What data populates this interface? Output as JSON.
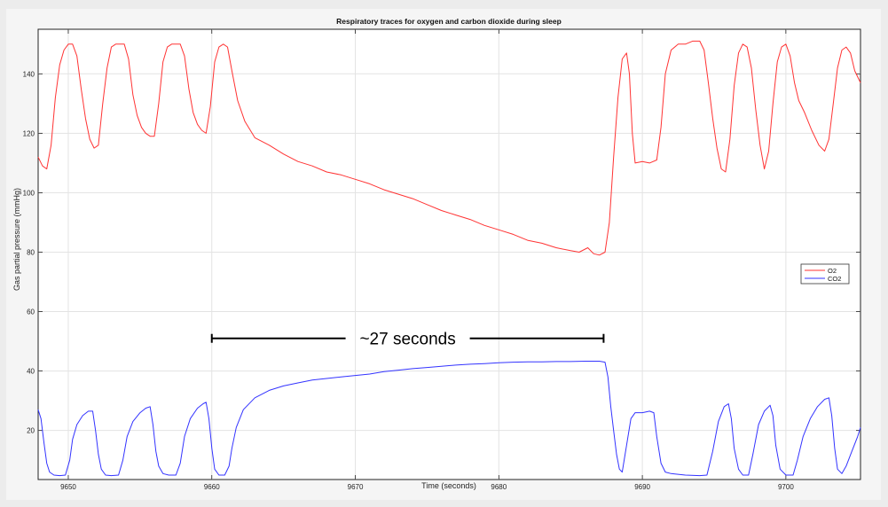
{
  "chart_data": {
    "type": "line",
    "title": "Respiratory traces for oxygen and carbon dioxide during sleep",
    "xlabel": "Time (seconds)",
    "ylabel": "Gas partial pressure (mmHg)",
    "xlim": [
      9647.9,
      9705.2
    ],
    "ylim": [
      3.5,
      155
    ],
    "x_ticks": [
      9650,
      9660,
      9670,
      9680,
      9690,
      9700
    ],
    "y_ticks": [
      20,
      40,
      60,
      80,
      100,
      120,
      140
    ],
    "grid": true,
    "legend": {
      "placement": "right",
      "entries": [
        "O2",
        "CO2"
      ]
    },
    "annotation": {
      "text": "~27 seconds",
      "x_start": 9660,
      "x_end": 9687.3,
      "y": 51
    },
    "series": [
      {
        "name": "O2",
        "color": "#ff3333",
        "points": [
          [
            9647.9,
            112
          ],
          [
            9648.2,
            109
          ],
          [
            9648.5,
            108
          ],
          [
            9648.8,
            116
          ],
          [
            9649.1,
            132
          ],
          [
            9649.4,
            143
          ],
          [
            9649.7,
            148
          ],
          [
            9650.0,
            150
          ],
          [
            9650.3,
            150
          ],
          [
            9650.6,
            146
          ],
          [
            9650.9,
            135
          ],
          [
            9651.2,
            125
          ],
          [
            9651.5,
            118
          ],
          [
            9651.8,
            115
          ],
          [
            9652.1,
            116
          ],
          [
            9652.4,
            130
          ],
          [
            9652.7,
            142
          ],
          [
            9653.0,
            149
          ],
          [
            9653.3,
            150
          ],
          [
            9653.6,
            150
          ],
          [
            9653.9,
            150
          ],
          [
            9654.2,
            145
          ],
          [
            9654.5,
            133
          ],
          [
            9654.8,
            126
          ],
          [
            9655.1,
            122
          ],
          [
            9655.4,
            120
          ],
          [
            9655.7,
            119
          ],
          [
            9656.0,
            119
          ],
          [
            9656.3,
            130
          ],
          [
            9656.6,
            144
          ],
          [
            9656.9,
            149
          ],
          [
            9657.2,
            150
          ],
          [
            9657.5,
            150
          ],
          [
            9657.8,
            150
          ],
          [
            9658.1,
            146
          ],
          [
            9658.4,
            135
          ],
          [
            9658.7,
            127
          ],
          [
            9659.0,
            123
          ],
          [
            9659.3,
            121
          ],
          [
            9659.6,
            120
          ],
          [
            9659.9,
            129
          ],
          [
            9660.2,
            144
          ],
          [
            9660.5,
            149
          ],
          [
            9660.8,
            150
          ],
          [
            9661.1,
            149
          ],
          [
            9661.4,
            141
          ],
          [
            9661.8,
            131
          ],
          [
            9662.3,
            124
          ],
          [
            9663.0,
            118.5
          ],
          [
            9664.0,
            116
          ],
          [
            9665.0,
            113
          ],
          [
            9666.0,
            110.5
          ],
          [
            9667.0,
            109
          ],
          [
            9668.0,
            107
          ],
          [
            9669.0,
            106
          ],
          [
            9670.0,
            104.5
          ],
          [
            9671.0,
            103
          ],
          [
            9672.0,
            101
          ],
          [
            9673.0,
            99.5
          ],
          [
            9674.0,
            98
          ],
          [
            9675.0,
            96
          ],
          [
            9676.0,
            94
          ],
          [
            9677.0,
            92.5
          ],
          [
            9678.0,
            91
          ],
          [
            9679.0,
            89
          ],
          [
            9680.0,
            87.5
          ],
          [
            9681.0,
            86
          ],
          [
            9682.0,
            84
          ],
          [
            9683.0,
            83
          ],
          [
            9684.0,
            81.5
          ],
          [
            9685.0,
            80.5
          ],
          [
            9685.6,
            80
          ],
          [
            9686.2,
            81.5
          ],
          [
            9686.6,
            79.5
          ],
          [
            9687.0,
            79
          ],
          [
            9687.4,
            80
          ],
          [
            9687.7,
            90
          ],
          [
            9688.0,
            112
          ],
          [
            9688.3,
            132
          ],
          [
            9688.6,
            145
          ],
          [
            9688.9,
            147
          ],
          [
            9689.1,
            140
          ],
          [
            9689.3,
            120
          ],
          [
            9689.5,
            110
          ],
          [
            9690.0,
            110.5
          ],
          [
            9690.5,
            110
          ],
          [
            9691.0,
            111
          ],
          [
            9691.3,
            122
          ],
          [
            9691.6,
            140
          ],
          [
            9692.0,
            148
          ],
          [
            9692.5,
            150
          ],
          [
            9693.0,
            150
          ],
          [
            9693.5,
            151
          ],
          [
            9694.0,
            151
          ],
          [
            9694.3,
            148
          ],
          [
            9694.6,
            137
          ],
          [
            9694.9,
            125
          ],
          [
            9695.2,
            115
          ],
          [
            9695.5,
            108
          ],
          [
            9695.8,
            107
          ],
          [
            9696.1,
            118
          ],
          [
            9696.4,
            136
          ],
          [
            9696.7,
            147
          ],
          [
            9697.0,
            150
          ],
          [
            9697.3,
            149
          ],
          [
            9697.6,
            142
          ],
          [
            9697.9,
            128
          ],
          [
            9698.2,
            116
          ],
          [
            9698.5,
            108
          ],
          [
            9698.8,
            114
          ],
          [
            9699.1,
            130
          ],
          [
            9699.4,
            144
          ],
          [
            9699.7,
            149
          ],
          [
            9700.0,
            150
          ],
          [
            9700.3,
            146
          ],
          [
            9700.6,
            137
          ],
          [
            9700.9,
            131
          ],
          [
            9701.3,
            127
          ],
          [
            9701.8,
            121
          ],
          [
            9702.3,
            116
          ],
          [
            9702.7,
            114
          ],
          [
            9703.0,
            118
          ],
          [
            9703.3,
            130
          ],
          [
            9703.6,
            142
          ],
          [
            9703.9,
            148
          ],
          [
            9704.2,
            149
          ],
          [
            9704.5,
            147
          ],
          [
            9704.8,
            141
          ],
          [
            9705.2,
            137
          ]
        ]
      },
      {
        "name": "CO2",
        "color": "#3333ff",
        "points": [
          [
            9647.9,
            27
          ],
          [
            9648.1,
            24
          ],
          [
            9648.3,
            16
          ],
          [
            9648.5,
            9
          ],
          [
            9648.7,
            6
          ],
          [
            9649.0,
            5
          ],
          [
            9649.4,
            4.8
          ],
          [
            9649.8,
            5
          ],
          [
            9650.1,
            10
          ],
          [
            9650.3,
            17
          ],
          [
            9650.6,
            22
          ],
          [
            9651.0,
            25
          ],
          [
            9651.4,
            26.5
          ],
          [
            9651.7,
            26.5
          ],
          [
            9651.9,
            20
          ],
          [
            9652.1,
            12
          ],
          [
            9652.3,
            7
          ],
          [
            9652.6,
            5
          ],
          [
            9653.0,
            4.8
          ],
          [
            9653.5,
            5
          ],
          [
            9653.8,
            10
          ],
          [
            9654.1,
            18
          ],
          [
            9654.5,
            23
          ],
          [
            9655.0,
            26
          ],
          [
            9655.4,
            27.5
          ],
          [
            9655.7,
            28
          ],
          [
            9655.9,
            22
          ],
          [
            9656.1,
            13
          ],
          [
            9656.3,
            8
          ],
          [
            9656.6,
            5.5
          ],
          [
            9657.0,
            5
          ],
          [
            9657.5,
            5
          ],
          [
            9657.8,
            9
          ],
          [
            9658.1,
            18
          ],
          [
            9658.5,
            24
          ],
          [
            9659.0,
            27.5
          ],
          [
            9659.4,
            29
          ],
          [
            9659.6,
            29.5
          ],
          [
            9659.8,
            24
          ],
          [
            9660.0,
            14
          ],
          [
            9660.2,
            7
          ],
          [
            9660.5,
            5
          ],
          [
            9660.9,
            5
          ],
          [
            9661.2,
            8
          ],
          [
            9661.4,
            14
          ],
          [
            9661.7,
            21
          ],
          [
            9662.2,
            27
          ],
          [
            9663.0,
            31
          ],
          [
            9664.0,
            33.5
          ],
          [
            9665.0,
            35
          ],
          [
            9666.0,
            36
          ],
          [
            9667.0,
            37
          ],
          [
            9668.0,
            37.5
          ],
          [
            9669.0,
            38
          ],
          [
            9670.0,
            38.5
          ],
          [
            9671.0,
            39
          ],
          [
            9672.0,
            39.8
          ],
          [
            9673.0,
            40.3
          ],
          [
            9674.0,
            40.8
          ],
          [
            9675.0,
            41.2
          ],
          [
            9676.0,
            41.6
          ],
          [
            9677.0,
            42
          ],
          [
            9678.0,
            42.3
          ],
          [
            9679.0,
            42.5
          ],
          [
            9680.0,
            42.8
          ],
          [
            9681.0,
            43
          ],
          [
            9682.0,
            43.1
          ],
          [
            9683.0,
            43.1
          ],
          [
            9684.0,
            43.2
          ],
          [
            9685.0,
            43.2
          ],
          [
            9686.0,
            43.3
          ],
          [
            9687.0,
            43.3
          ],
          [
            9687.4,
            43
          ],
          [
            9687.6,
            38
          ],
          [
            9687.8,
            28
          ],
          [
            9688.0,
            20
          ],
          [
            9688.2,
            12
          ],
          [
            9688.4,
            7
          ],
          [
            9688.6,
            6
          ],
          [
            9688.9,
            15
          ],
          [
            9689.2,
            24
          ],
          [
            9689.5,
            26
          ],
          [
            9690.0,
            26
          ],
          [
            9690.5,
            26.5
          ],
          [
            9690.8,
            26
          ],
          [
            9691.0,
            18
          ],
          [
            9691.3,
            9
          ],
          [
            9691.6,
            6
          ],
          [
            9692.0,
            5.5
          ],
          [
            9693.0,
            5
          ],
          [
            9694.0,
            4.8
          ],
          [
            9694.5,
            5
          ],
          [
            9694.9,
            13
          ],
          [
            9695.3,
            23
          ],
          [
            9695.7,
            28
          ],
          [
            9696.0,
            29
          ],
          [
            9696.2,
            24
          ],
          [
            9696.4,
            14
          ],
          [
            9696.7,
            7
          ],
          [
            9697.0,
            5
          ],
          [
            9697.4,
            5
          ],
          [
            9697.7,
            12
          ],
          [
            9698.1,
            22
          ],
          [
            9698.5,
            26.5
          ],
          [
            9698.9,
            28.5
          ],
          [
            9699.1,
            25
          ],
          [
            9699.3,
            15
          ],
          [
            9699.6,
            7
          ],
          [
            9700.0,
            5
          ],
          [
            9700.5,
            5
          ],
          [
            9700.8,
            10
          ],
          [
            9701.2,
            18
          ],
          [
            9701.7,
            24
          ],
          [
            9702.2,
            28
          ],
          [
            9702.7,
            30.5
          ],
          [
            9703.0,
            31
          ],
          [
            9703.2,
            25
          ],
          [
            9703.4,
            14
          ],
          [
            9703.6,
            7
          ],
          [
            9703.9,
            5.5
          ],
          [
            9704.2,
            8
          ],
          [
            9704.6,
            13
          ],
          [
            9705.0,
            18
          ],
          [
            9705.2,
            21
          ]
        ]
      }
    ]
  }
}
